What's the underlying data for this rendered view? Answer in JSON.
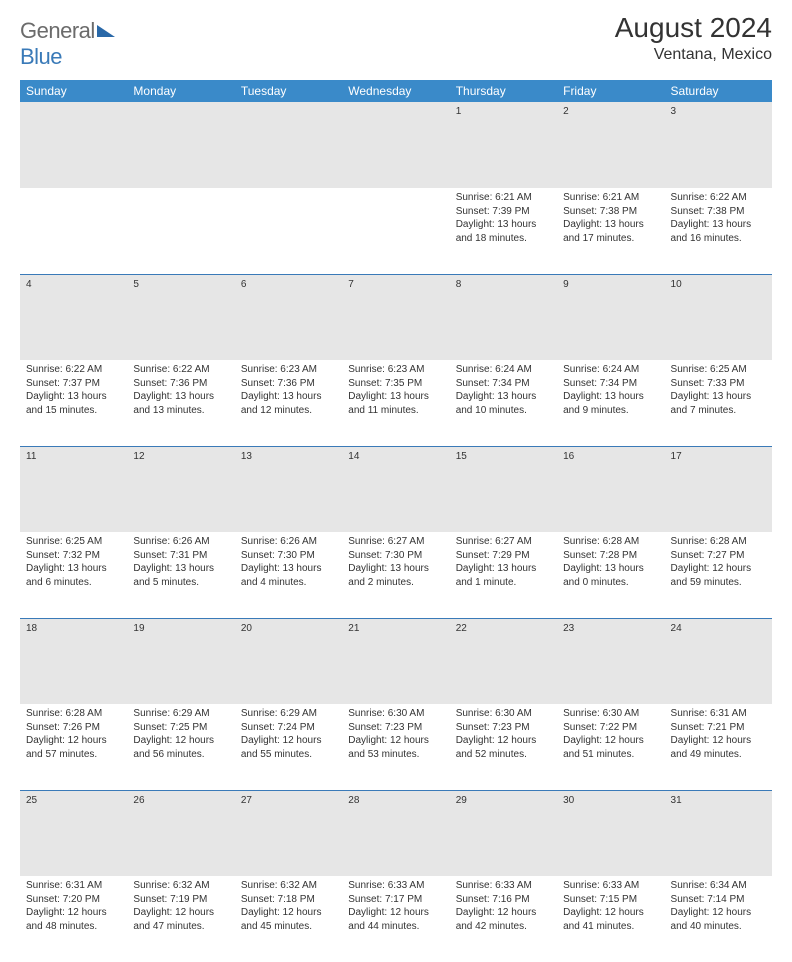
{
  "brand": {
    "text1": "General",
    "text2": "Blue"
  },
  "title": "August 2024",
  "location": "Ventana, Mexico",
  "colors": {
    "header_bg": "#3a8ac9",
    "header_text": "#ffffff",
    "daynum_bg": "#e6e6e6",
    "row_border": "#3a7ab8",
    "brand_gray": "#6b6b6b",
    "brand_blue": "#3a7ab8"
  },
  "weekdays": [
    "Sunday",
    "Monday",
    "Tuesday",
    "Wednesday",
    "Thursday",
    "Friday",
    "Saturday"
  ],
  "weeks": [
    {
      "nums": [
        "",
        "",
        "",
        "",
        "1",
        "2",
        "3"
      ],
      "cells": [
        null,
        null,
        null,
        null,
        {
          "sunrise": "6:21 AM",
          "sunset": "7:39 PM",
          "daylight": "13 hours and 18 minutes."
        },
        {
          "sunrise": "6:21 AM",
          "sunset": "7:38 PM",
          "daylight": "13 hours and 17 minutes."
        },
        {
          "sunrise": "6:22 AM",
          "sunset": "7:38 PM",
          "daylight": "13 hours and 16 minutes."
        }
      ]
    },
    {
      "nums": [
        "4",
        "5",
        "6",
        "7",
        "8",
        "9",
        "10"
      ],
      "cells": [
        {
          "sunrise": "6:22 AM",
          "sunset": "7:37 PM",
          "daylight": "13 hours and 15 minutes."
        },
        {
          "sunrise": "6:22 AM",
          "sunset": "7:36 PM",
          "daylight": "13 hours and 13 minutes."
        },
        {
          "sunrise": "6:23 AM",
          "sunset": "7:36 PM",
          "daylight": "13 hours and 12 minutes."
        },
        {
          "sunrise": "6:23 AM",
          "sunset": "7:35 PM",
          "daylight": "13 hours and 11 minutes."
        },
        {
          "sunrise": "6:24 AM",
          "sunset": "7:34 PM",
          "daylight": "13 hours and 10 minutes."
        },
        {
          "sunrise": "6:24 AM",
          "sunset": "7:34 PM",
          "daylight": "13 hours and 9 minutes."
        },
        {
          "sunrise": "6:25 AM",
          "sunset": "7:33 PM",
          "daylight": "13 hours and 7 minutes."
        }
      ]
    },
    {
      "nums": [
        "11",
        "12",
        "13",
        "14",
        "15",
        "16",
        "17"
      ],
      "cells": [
        {
          "sunrise": "6:25 AM",
          "sunset": "7:32 PM",
          "daylight": "13 hours and 6 minutes."
        },
        {
          "sunrise": "6:26 AM",
          "sunset": "7:31 PM",
          "daylight": "13 hours and 5 minutes."
        },
        {
          "sunrise": "6:26 AM",
          "sunset": "7:30 PM",
          "daylight": "13 hours and 4 minutes."
        },
        {
          "sunrise": "6:27 AM",
          "sunset": "7:30 PM",
          "daylight": "13 hours and 2 minutes."
        },
        {
          "sunrise": "6:27 AM",
          "sunset": "7:29 PM",
          "daylight": "13 hours and 1 minute."
        },
        {
          "sunrise": "6:28 AM",
          "sunset": "7:28 PM",
          "daylight": "13 hours and 0 minutes."
        },
        {
          "sunrise": "6:28 AM",
          "sunset": "7:27 PM",
          "daylight": "12 hours and 59 minutes."
        }
      ]
    },
    {
      "nums": [
        "18",
        "19",
        "20",
        "21",
        "22",
        "23",
        "24"
      ],
      "cells": [
        {
          "sunrise": "6:28 AM",
          "sunset": "7:26 PM",
          "daylight": "12 hours and 57 minutes."
        },
        {
          "sunrise": "6:29 AM",
          "sunset": "7:25 PM",
          "daylight": "12 hours and 56 minutes."
        },
        {
          "sunrise": "6:29 AM",
          "sunset": "7:24 PM",
          "daylight": "12 hours and 55 minutes."
        },
        {
          "sunrise": "6:30 AM",
          "sunset": "7:23 PM",
          "daylight": "12 hours and 53 minutes."
        },
        {
          "sunrise": "6:30 AM",
          "sunset": "7:23 PM",
          "daylight": "12 hours and 52 minutes."
        },
        {
          "sunrise": "6:30 AM",
          "sunset": "7:22 PM",
          "daylight": "12 hours and 51 minutes."
        },
        {
          "sunrise": "6:31 AM",
          "sunset": "7:21 PM",
          "daylight": "12 hours and 49 minutes."
        }
      ]
    },
    {
      "nums": [
        "25",
        "26",
        "27",
        "28",
        "29",
        "30",
        "31"
      ],
      "cells": [
        {
          "sunrise": "6:31 AM",
          "sunset": "7:20 PM",
          "daylight": "12 hours and 48 minutes."
        },
        {
          "sunrise": "6:32 AM",
          "sunset": "7:19 PM",
          "daylight": "12 hours and 47 minutes."
        },
        {
          "sunrise": "6:32 AM",
          "sunset": "7:18 PM",
          "daylight": "12 hours and 45 minutes."
        },
        {
          "sunrise": "6:33 AM",
          "sunset": "7:17 PM",
          "daylight": "12 hours and 44 minutes."
        },
        {
          "sunrise": "6:33 AM",
          "sunset": "7:16 PM",
          "daylight": "12 hours and 42 minutes."
        },
        {
          "sunrise": "6:33 AM",
          "sunset": "7:15 PM",
          "daylight": "12 hours and 41 minutes."
        },
        {
          "sunrise": "6:34 AM",
          "sunset": "7:14 PM",
          "daylight": "12 hours and 40 minutes."
        }
      ]
    }
  ],
  "labels": {
    "sunrise": "Sunrise: ",
    "sunset": "Sunset: ",
    "daylight": "Daylight: "
  }
}
